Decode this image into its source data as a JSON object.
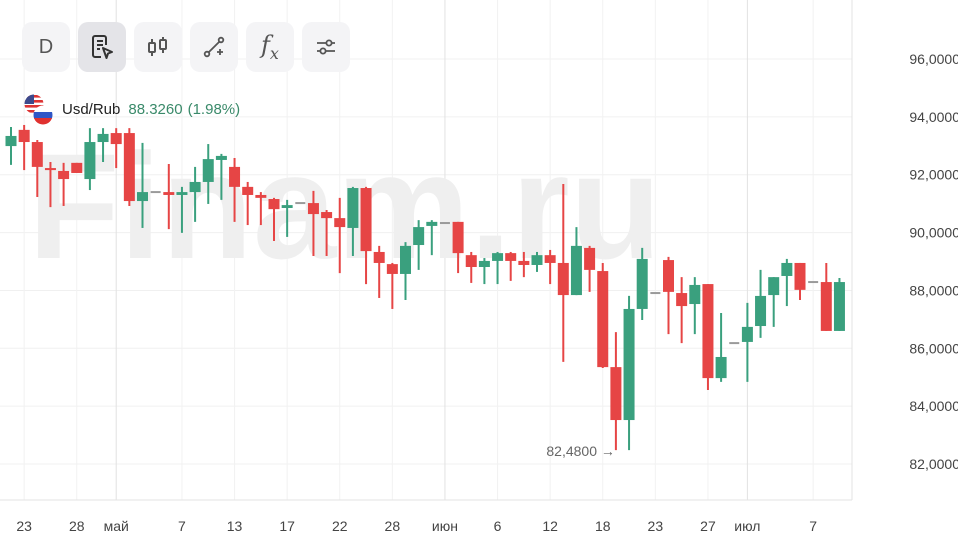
{
  "toolbar": {
    "interval_label": "D",
    "buttons": [
      "interval",
      "chart-type-select",
      "candles",
      "drawing-tools",
      "indicators",
      "settings"
    ]
  },
  "legend": {
    "symbol": "Usd/Rub",
    "price": "88.3260",
    "change": "(1.98%)"
  },
  "watermark": "Finam.ru",
  "colors": {
    "up": "#3aa07e",
    "down": "#e64545",
    "flat": "#9a9a9a",
    "legend_value": "#3a8a6a"
  },
  "chart_data": {
    "type": "candlestick",
    "title": "Usd/Rub",
    "ylim": [
      81.0,
      97.5
    ],
    "y_ticks": [
      96,
      94,
      92,
      90,
      88,
      86,
      84,
      82
    ],
    "y_tick_labels": [
      "96,0000",
      "94,0000",
      "92,0000",
      "90,0000",
      "88,0000",
      "86,0000",
      "84,0000",
      "82,0000"
    ],
    "x_tick_labels": [
      {
        "label": "23",
        "candle": 2
      },
      {
        "label": "28",
        "candle": 6
      },
      {
        "label": "май",
        "candle": 9,
        "month": true
      },
      {
        "label": "7",
        "candle": 14
      },
      {
        "label": "13",
        "candle": 18
      },
      {
        "label": "17",
        "candle": 22
      },
      {
        "label": "22",
        "candle": 26
      },
      {
        "label": "28",
        "candle": 30
      },
      {
        "label": "июн",
        "candle": 34,
        "month": true
      },
      {
        "label": "6",
        "candle": 38
      },
      {
        "label": "12",
        "candle": 42
      },
      {
        "label": "18",
        "candle": 46
      },
      {
        "label": "23",
        "candle": 50
      },
      {
        "label": "27",
        "candle": 54
      },
      {
        "label": "июл",
        "candle": 57,
        "month": true
      },
      {
        "label": "7",
        "candle": 62
      }
    ],
    "min_annotation": {
      "label": "82,4800 →",
      "value": 82.48,
      "candle": 47
    },
    "ohlc": [
      [
        92.99,
        93.65,
        92.34,
        93.34
      ],
      [
        93.55,
        93.72,
        92.16,
        93.13
      ],
      [
        93.13,
        93.2,
        91.23,
        92.27
      ],
      [
        92.23,
        92.44,
        90.88,
        92.16
      ],
      [
        92.13,
        92.41,
        90.92,
        91.85
      ],
      [
        92.41,
        92.41,
        92.06,
        92.06
      ],
      [
        91.85,
        93.61,
        91.47,
        93.13
      ],
      [
        93.13,
        93.61,
        92.44,
        93.41
      ],
      [
        93.44,
        93.61,
        92.23,
        93.06
      ],
      [
        93.44,
        93.61,
        90.92,
        91.09
      ],
      [
        91.09,
        93.1,
        90.16,
        91.4
      ],
      [
        91.4,
        91.4,
        91.4,
        91.4
      ],
      [
        91.4,
        92.37,
        90.12,
        91.3
      ],
      [
        91.3,
        91.58,
        89.99,
        91.4
      ],
      [
        91.4,
        92.27,
        90.37,
        91.75
      ],
      [
        91.75,
        93.06,
        90.99,
        92.54
      ],
      [
        92.51,
        92.72,
        91.13,
        92.65
      ],
      [
        92.27,
        92.58,
        90.37,
        91.58
      ],
      [
        91.58,
        91.75,
        90.26,
        91.3
      ],
      [
        91.3,
        91.4,
        90.26,
        91.2
      ],
      [
        91.16,
        91.2,
        89.71,
        90.81
      ],
      [
        90.85,
        91.13,
        89.85,
        90.95
      ],
      [
        91.02,
        91.02,
        91.02,
        91.02
      ],
      [
        91.02,
        91.44,
        89.19,
        90.64
      ],
      [
        90.71,
        90.78,
        89.19,
        90.5
      ],
      [
        90.5,
        91.2,
        88.6,
        90.19
      ],
      [
        90.16,
        91.58,
        89.19,
        91.54
      ],
      [
        91.54,
        91.58,
        88.22,
        89.36
      ],
      [
        89.33,
        89.54,
        87.74,
        88.95
      ],
      [
        88.91,
        88.95,
        87.36,
        88.57
      ],
      [
        88.57,
        89.67,
        87.67,
        89.54
      ],
      [
        89.57,
        90.43,
        88.71,
        90.19
      ],
      [
        90.23,
        90.43,
        89.22,
        90.37
      ],
      [
        90.33,
        90.33,
        90.33,
        90.33
      ],
      [
        90.37,
        90.37,
        88.6,
        89.29
      ],
      [
        89.22,
        89.33,
        88.26,
        88.81
      ],
      [
        88.81,
        89.12,
        88.22,
        89.02
      ],
      [
        89.02,
        89.33,
        88.22,
        89.29
      ],
      [
        89.29,
        89.33,
        88.33,
        89.02
      ],
      [
        89.02,
        89.33,
        88.46,
        88.88
      ],
      [
        88.88,
        89.33,
        88.64,
        89.22
      ],
      [
        89.22,
        89.4,
        88.22,
        88.95
      ],
      [
        88.95,
        91.68,
        85.53,
        87.84
      ],
      [
        87.84,
        90.19,
        87.84,
        89.54
      ],
      [
        89.47,
        89.54,
        87.95,
        88.71
      ],
      [
        88.67,
        88.95,
        85.32,
        85.35
      ],
      [
        85.35,
        86.56,
        82.48,
        83.52
      ],
      [
        83.52,
        87.81,
        82.48,
        87.36
      ],
      [
        87.36,
        89.47,
        86.98,
        89.09
      ],
      [
        87.91,
        87.91,
        87.91,
        87.91
      ],
      [
        89.05,
        89.16,
        86.49,
        87.95
      ],
      [
        87.91,
        88.46,
        86.18,
        87.46
      ],
      [
        87.53,
        88.46,
        86.49,
        88.19
      ],
      [
        88.22,
        88.22,
        84.56,
        84.97
      ],
      [
        84.97,
        87.22,
        84.84,
        85.7
      ],
      [
        86.18,
        86.18,
        86.18,
        86.18
      ],
      [
        86.22,
        87.57,
        84.84,
        86.74
      ],
      [
        86.77,
        88.71,
        86.36,
        87.81
      ],
      [
        87.84,
        88.46,
        86.74,
        88.46
      ],
      [
        88.5,
        89.09,
        87.46,
        88.95
      ],
      [
        88.95,
        88.95,
        87.67,
        88.02
      ],
      [
        88.29,
        88.29,
        88.29,
        88.29
      ],
      [
        88.29,
        88.95,
        86.6,
        86.6
      ],
      [
        86.6,
        88.43,
        86.6,
        88.29
      ]
    ]
  }
}
